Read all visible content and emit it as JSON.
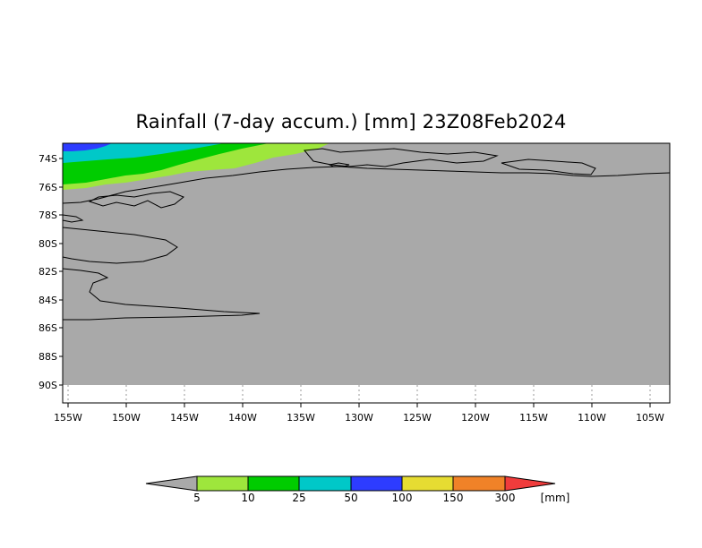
{
  "title": "Rainfall (7-day accum.) [mm] 23Z08Feb2024",
  "map": {
    "lat_ticks": [
      "74S",
      "76S",
      "78S",
      "80S",
      "82S",
      "84S",
      "86S",
      "88S",
      "90S"
    ],
    "lon_ticks": [
      "155W",
      "150W",
      "145W",
      "140W",
      "135W",
      "130W",
      "125W",
      "120W",
      "115W",
      "110W",
      "105W"
    ],
    "land_color": "#a9a9a9",
    "outside_color": "#ffffff"
  },
  "colorbar": {
    "labels": [
      "5",
      "10",
      "25",
      "50",
      "100",
      "150",
      "300"
    ],
    "unit": "[mm]",
    "colors": [
      "#a9a9a9",
      "#9ee63c",
      "#00cc00",
      "#00c8c8",
      "#2d3cff",
      "#e6dc32",
      "#f08228",
      "#f03c3c"
    ]
  }
}
